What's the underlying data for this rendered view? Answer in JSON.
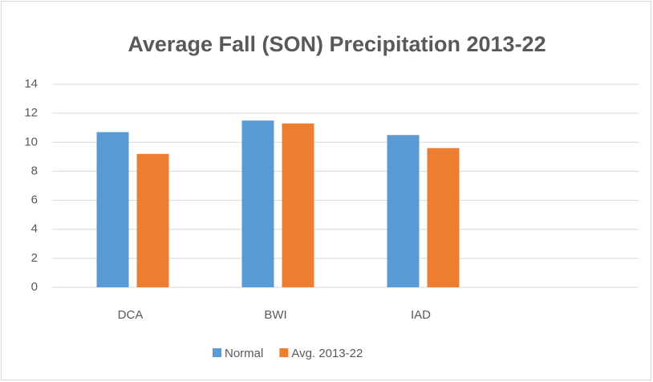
{
  "chart_data": {
    "type": "bar",
    "title": "Average Fall (SON) Precipitation 2013-22",
    "categories": [
      "DCA",
      "BWI",
      "IAD",
      null
    ],
    "series": [
      {
        "name": "Normal",
        "color": "#5b9bd5",
        "values": [
          10.7,
          11.5,
          10.5,
          null
        ]
      },
      {
        "name": "Avg. 2013-22",
        "color": "#ed7d31",
        "values": [
          9.2,
          11.3,
          9.6,
          null
        ]
      }
    ],
    "ylim": [
      0,
      14
    ],
    "yticks": [
      0,
      2,
      4,
      6,
      8,
      10,
      12,
      14
    ],
    "grid": true,
    "legend": "bottom"
  }
}
